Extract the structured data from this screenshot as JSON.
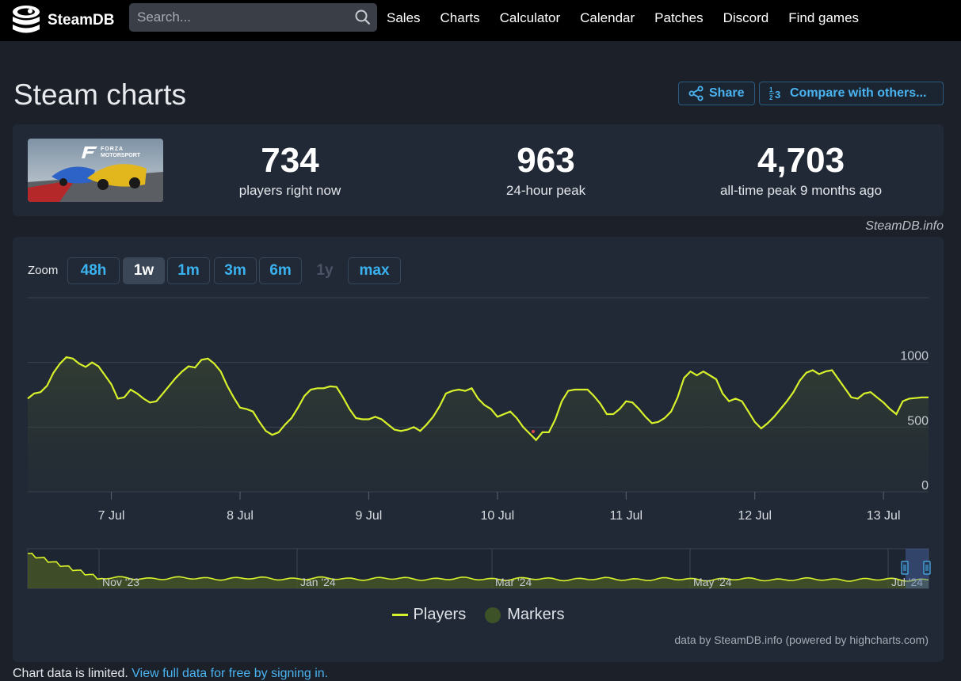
{
  "app": {
    "logo_text": "SteamDB",
    "search_placeholder": "Search...",
    "nav": [
      "Sales",
      "Charts",
      "Calculator",
      "Calendar",
      "Patches",
      "Discord",
      "Find games"
    ]
  },
  "page": {
    "title": "Steam charts",
    "share_label": "Share",
    "compare_label": "Compare with others..."
  },
  "game": {
    "image_title_line1": "FORZA",
    "image_title_line2": "MOTORSPORT"
  },
  "stats": [
    {
      "value": "734",
      "label": "players right now"
    },
    {
      "value": "963",
      "label": "24-hour peak"
    },
    {
      "value": "4,703",
      "label": "all-time peak 9 months ago"
    }
  ],
  "attribution": "SteamDB.info",
  "zoom": {
    "label": "Zoom",
    "options": [
      {
        "label": "48h",
        "state": "normal"
      },
      {
        "label": "1w",
        "state": "active"
      },
      {
        "label": "1m",
        "state": "normal"
      },
      {
        "label": "3m",
        "state": "normal"
      },
      {
        "label": "6m",
        "state": "normal"
      },
      {
        "label": "1y",
        "state": "disabled"
      },
      {
        "label": "max",
        "state": "normal"
      }
    ]
  },
  "chart_data": {
    "type": "line",
    "series": [
      {
        "name": "Players",
        "color": "#d7f12b"
      }
    ],
    "x_ticks": [
      "7 Jul",
      "8 Jul",
      "9 Jul",
      "10 Jul",
      "11 Jul",
      "12 Jul",
      "13 Jul"
    ],
    "x_domain_days": [
      6.35,
      13.35
    ],
    "y_ticks": [
      "0",
      "500",
      "1000"
    ],
    "ylim": [
      0,
      1500
    ],
    "grid": true,
    "points": [
      [
        6.35,
        720
      ],
      [
        6.4,
        760
      ],
      [
        6.45,
        770
      ],
      [
        6.5,
        820
      ],
      [
        6.55,
        920
      ],
      [
        6.6,
        990
      ],
      [
        6.65,
        1040
      ],
      [
        6.7,
        1030
      ],
      [
        6.75,
        990
      ],
      [
        6.8,
        965
      ],
      [
        6.85,
        1000
      ],
      [
        6.9,
        970
      ],
      [
        6.95,
        900
      ],
      [
        7.0,
        830
      ],
      [
        7.05,
        720
      ],
      [
        7.1,
        730
      ],
      [
        7.15,
        790
      ],
      [
        7.2,
        760
      ],
      [
        7.25,
        720
      ],
      [
        7.3,
        690
      ],
      [
        7.35,
        700
      ],
      [
        7.4,
        760
      ],
      [
        7.45,
        820
      ],
      [
        7.5,
        880
      ],
      [
        7.55,
        930
      ],
      [
        7.6,
        970
      ],
      [
        7.65,
        960
      ],
      [
        7.7,
        1020
      ],
      [
        7.75,
        1030
      ],
      [
        7.8,
        990
      ],
      [
        7.85,
        930
      ],
      [
        7.9,
        820
      ],
      [
        7.95,
        730
      ],
      [
        8.0,
        650
      ],
      [
        8.05,
        640
      ],
      [
        8.1,
        620
      ],
      [
        8.15,
        540
      ],
      [
        8.2,
        470
      ],
      [
        8.25,
        440
      ],
      [
        8.3,
        460
      ],
      [
        8.35,
        520
      ],
      [
        8.4,
        570
      ],
      [
        8.45,
        650
      ],
      [
        8.5,
        740
      ],
      [
        8.55,
        790
      ],
      [
        8.6,
        800
      ],
      [
        8.65,
        800
      ],
      [
        8.7,
        815
      ],
      [
        8.75,
        810
      ],
      [
        8.8,
        730
      ],
      [
        8.85,
        640
      ],
      [
        8.9,
        570
      ],
      [
        8.95,
        560
      ],
      [
        9.0,
        560
      ],
      [
        9.05,
        580
      ],
      [
        9.1,
        560
      ],
      [
        9.15,
        520
      ],
      [
        9.2,
        480
      ],
      [
        9.25,
        470
      ],
      [
        9.3,
        480
      ],
      [
        9.35,
        500
      ],
      [
        9.4,
        470
      ],
      [
        9.45,
        520
      ],
      [
        9.5,
        580
      ],
      [
        9.55,
        660
      ],
      [
        9.6,
        760
      ],
      [
        9.65,
        780
      ],
      [
        9.7,
        790
      ],
      [
        9.75,
        780
      ],
      [
        9.8,
        800
      ],
      [
        9.85,
        720
      ],
      [
        9.9,
        670
      ],
      [
        9.95,
        640
      ],
      [
        10.0,
        580
      ],
      [
        10.05,
        600
      ],
      [
        10.1,
        620
      ],
      [
        10.15,
        570
      ],
      [
        10.2,
        500
      ],
      [
        10.25,
        450
      ],
      [
        10.3,
        400
      ],
      [
        10.35,
        460
      ],
      [
        10.4,
        460
      ],
      [
        10.45,
        560
      ],
      [
        10.5,
        700
      ],
      [
        10.55,
        780
      ],
      [
        10.6,
        790
      ],
      [
        10.65,
        790
      ],
      [
        10.7,
        790
      ],
      [
        10.75,
        740
      ],
      [
        10.8,
        680
      ],
      [
        10.85,
        600
      ],
      [
        10.9,
        600
      ],
      [
        10.95,
        640
      ],
      [
        11.0,
        700
      ],
      [
        11.05,
        690
      ],
      [
        11.1,
        640
      ],
      [
        11.15,
        580
      ],
      [
        11.2,
        530
      ],
      [
        11.25,
        540
      ],
      [
        11.3,
        570
      ],
      [
        11.35,
        620
      ],
      [
        11.4,
        730
      ],
      [
        11.45,
        880
      ],
      [
        11.5,
        930
      ],
      [
        11.55,
        900
      ],
      [
        11.6,
        930
      ],
      [
        11.65,
        900
      ],
      [
        11.7,
        870
      ],
      [
        11.75,
        760
      ],
      [
        11.8,
        700
      ],
      [
        11.85,
        720
      ],
      [
        11.9,
        700
      ],
      [
        11.95,
        620
      ],
      [
        12.0,
        540
      ],
      [
        12.05,
        490
      ],
      [
        12.1,
        530
      ],
      [
        12.15,
        580
      ],
      [
        12.2,
        640
      ],
      [
        12.25,
        700
      ],
      [
        12.3,
        770
      ],
      [
        12.35,
        860
      ],
      [
        12.4,
        920
      ],
      [
        12.45,
        940
      ],
      [
        12.5,
        910
      ],
      [
        12.55,
        930
      ],
      [
        12.6,
        940
      ],
      [
        12.65,
        870
      ],
      [
        12.7,
        800
      ],
      [
        12.75,
        730
      ],
      [
        12.8,
        720
      ],
      [
        12.85,
        760
      ],
      [
        12.9,
        770
      ],
      [
        12.95,
        730
      ],
      [
        13.0,
        690
      ],
      [
        13.05,
        640
      ],
      [
        13.1,
        600
      ],
      [
        13.15,
        700
      ],
      [
        13.2,
        720
      ],
      [
        13.3,
        730
      ],
      [
        13.35,
        730
      ]
    ],
    "navigator": {
      "ticks": [
        "Nov '23",
        "Jan '24",
        "Mar '24",
        "May '24",
        "Jul '24"
      ]
    },
    "legend": [
      "Players",
      "Markers"
    ],
    "credits": "data by SteamDB.info (powered by highcharts.com)"
  },
  "footer_note": {
    "prefix": "Chart data is limited.",
    "link": "View full data for free by signing in."
  }
}
